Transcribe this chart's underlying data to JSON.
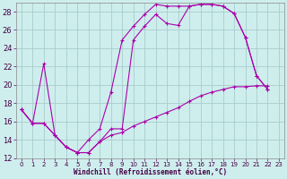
{
  "xlabel": "Windchill (Refroidissement éolien,°C)",
  "bg_color": "#ceeeed",
  "grid_color": "#aacccc",
  "line_color": "#aa00aa",
  "xlim": [
    -0.5,
    23.5
  ],
  "ylim": [
    12,
    29
  ],
  "xticks": [
    0,
    1,
    2,
    3,
    4,
    5,
    6,
    7,
    8,
    9,
    10,
    11,
    12,
    13,
    14,
    15,
    16,
    17,
    18,
    19,
    20,
    21,
    22,
    23
  ],
  "yticks": [
    12,
    14,
    16,
    18,
    20,
    22,
    24,
    26,
    28
  ],
  "line1_x": [
    0,
    1,
    2,
    3,
    4,
    5,
    6,
    7,
    8,
    9,
    10,
    11,
    12,
    13,
    14,
    15,
    16,
    17,
    18,
    19,
    20,
    21,
    22
  ],
  "line1_y": [
    17.3,
    15.8,
    15.8,
    14.5,
    13.2,
    12.6,
    12.6,
    13.8,
    15.2,
    15.2,
    24.9,
    26.4,
    27.7,
    26.7,
    26.5,
    28.6,
    28.8,
    28.8,
    28.6,
    27.8,
    25.2,
    21.0,
    19.5
  ],
  "line2_x": [
    0,
    1,
    2,
    3,
    4,
    5,
    6,
    7,
    8,
    9,
    10,
    11,
    12,
    13,
    14,
    15,
    16,
    17,
    18,
    19,
    20,
    21,
    22
  ],
  "line2_y": [
    17.3,
    15.8,
    15.8,
    14.5,
    13.2,
    12.6,
    12.6,
    13.8,
    14.5,
    14.8,
    15.5,
    16.0,
    16.5,
    17.0,
    17.5,
    18.2,
    18.8,
    19.2,
    19.5,
    19.8,
    19.8,
    19.9,
    19.9
  ],
  "line3_x": [
    0,
    1,
    2,
    3,
    4,
    5,
    6,
    7,
    8,
    9,
    10,
    11,
    12,
    13,
    14,
    15,
    16,
    17,
    18,
    19,
    20,
    21,
    22
  ],
  "line3_y": [
    17.3,
    15.8,
    22.3,
    14.5,
    13.2,
    12.6,
    14.0,
    15.2,
    19.2,
    24.9,
    26.4,
    27.7,
    28.8,
    28.6,
    28.6,
    28.6,
    28.8,
    28.8,
    28.6,
    27.8,
    25.2,
    21.0,
    19.5
  ]
}
